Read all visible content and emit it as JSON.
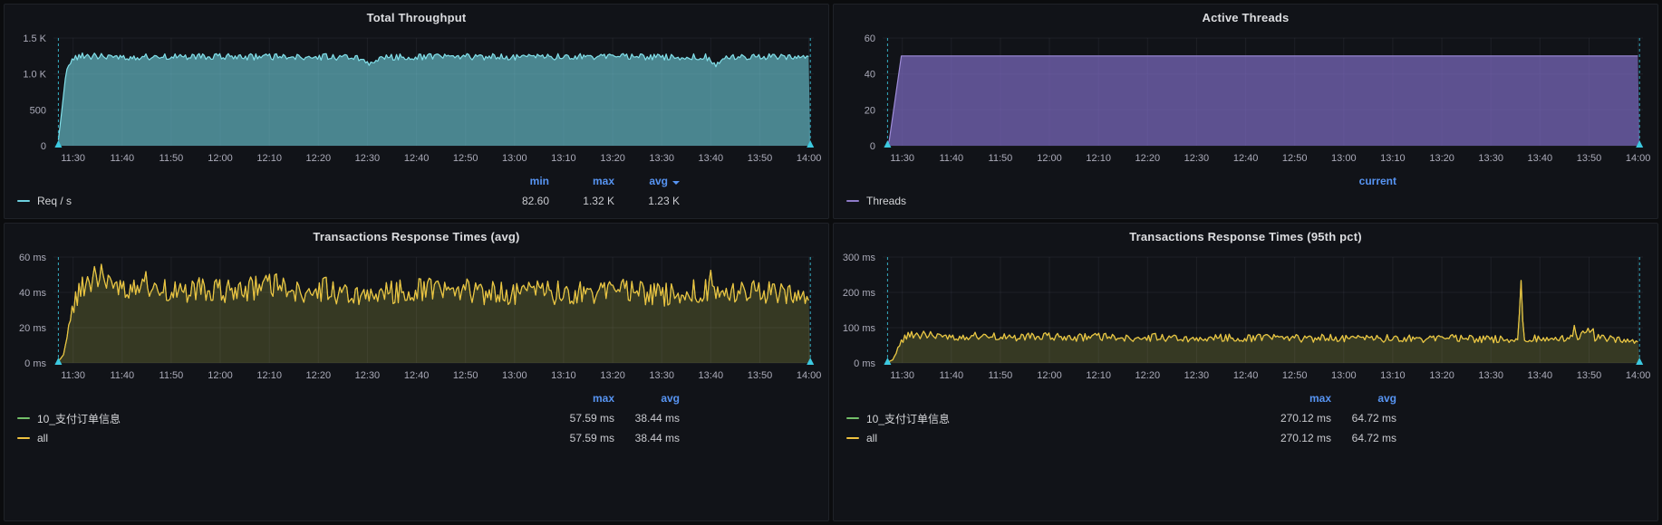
{
  "colors": {
    "page_bg": "#0B0C0E",
    "panel_bg": "#111318",
    "accent_blue": "#5794F2",
    "annotation_cyan": "#3CC9E0",
    "throughput_cyan": "#6ED0E0",
    "threads_purple": "#8F7BC9",
    "series_green": "#73BF69",
    "series_yellow": "#EFC23F"
  },
  "time_axis": {
    "min": 686,
    "max": 841,
    "ticks": [
      [
        690,
        "11:30"
      ],
      [
        700,
        "11:40"
      ],
      [
        710,
        "11:50"
      ],
      [
        720,
        "12:00"
      ],
      [
        730,
        "12:10"
      ],
      [
        740,
        "12:20"
      ],
      [
        750,
        "12:30"
      ],
      [
        760,
        "12:40"
      ],
      [
        770,
        "12:50"
      ],
      [
        780,
        "13:00"
      ],
      [
        790,
        "13:10"
      ],
      [
        800,
        "13:20"
      ],
      [
        810,
        "13:30"
      ],
      [
        820,
        "13:40"
      ],
      [
        830,
        "13:50"
      ],
      [
        840,
        "14:00"
      ]
    ]
  },
  "chart_data": [
    {
      "type": "area",
      "title": "Total Throughput",
      "ylim": [
        0,
        1500
      ],
      "y_ticks": [
        [
          0,
          "0"
        ],
        [
          500,
          "500"
        ],
        [
          1000,
          "1.0 K"
        ],
        [
          1500,
          "1.5 K"
        ]
      ],
      "annotations": [
        687,
        840.3
      ],
      "series": [
        {
          "name": "Req / s",
          "color": "#82E0EA",
          "fill": "rgba(109,204,217,0.62)",
          "keyframes": [
            [
              687,
              82
            ],
            [
              687.6,
              430
            ],
            [
              688.6,
              1060
            ],
            [
              690,
              1215
            ],
            [
              692,
              1250
            ],
            [
              700,
              1238
            ],
            [
              715,
              1242
            ],
            [
              730,
              1236
            ],
            [
              748,
              1238
            ],
            [
              750.5,
              1150
            ],
            [
              752.5,
              1232
            ],
            [
              765,
              1240
            ],
            [
              780,
              1236
            ],
            [
              795,
              1242
            ],
            [
              810,
              1238
            ],
            [
              819,
              1236
            ],
            [
              821,
              1125
            ],
            [
              823,
              1238
            ],
            [
              832,
              1242
            ],
            [
              840.3,
              1240
            ]
          ],
          "noise": [
            [
              687,
              3
            ],
            [
              689,
              12
            ],
            [
              691,
              45
            ],
            [
              840.3,
              45
            ]
          ]
        }
      ],
      "legend": {
        "headers": [
          "min",
          "max",
          "avg"
        ],
        "rows": [
          {
            "label": "Req / s",
            "color": "#6ED0E0",
            "values": [
              "82.60",
              "1.32 K",
              "1.23 K"
            ]
          }
        ]
      }
    },
    {
      "type": "area",
      "title": "Active Threads",
      "ylim": [
        0,
        60
      ],
      "y_ticks": [
        [
          0,
          "0"
        ],
        [
          20,
          "20"
        ],
        [
          40,
          "40"
        ],
        [
          60,
          "60"
        ]
      ],
      "annotations": [
        687,
        840.3
      ],
      "series": [
        {
          "name": "Threads",
          "color": "#9E8CD9",
          "fill": "rgba(124,106,191,0.72)",
          "keyframes": [
            [
              687,
              0
            ],
            [
              687.3,
              2
            ],
            [
              689.8,
              50
            ],
            [
              840.3,
              50
            ]
          ],
          "noise": [
            [
              687,
              0
            ],
            [
              840.3,
              0
            ]
          ]
        }
      ],
      "legend": {
        "headers": [
          "current"
        ],
        "rows": [
          {
            "label": "Threads",
            "color": "#8F7BC9",
            "values": [
              ""
            ]
          }
        ]
      }
    },
    {
      "type": "area",
      "title": "Transactions Response Times (avg)",
      "ylim": [
        0,
        60
      ],
      "y_ticks": [
        [
          0,
          "0 ms"
        ],
        [
          20,
          "20 ms"
        ],
        [
          40,
          "40 ms"
        ],
        [
          60,
          "60 ms"
        ]
      ],
      "annotations": [
        687,
        840.3
      ],
      "series": [
        {
          "name": "10_支付订单信息",
          "color": "#73BF69",
          "fill": "rgba(115,191,105,0.10)",
          "keyframes": [
            [
              687,
              2
            ],
            [
              688,
              5
            ],
            [
              689.5,
              27
            ],
            [
              691,
              39
            ],
            [
              693.5,
              47
            ],
            [
              696,
              50
            ],
            [
              698,
              44
            ],
            [
              701,
              43
            ],
            [
              704,
              47
            ],
            [
              707,
              42
            ],
            [
              711,
              40
            ],
            [
              716,
              42
            ],
            [
              721,
              40
            ],
            [
              726,
              42
            ],
            [
              731,
              44
            ],
            [
              736,
              40
            ],
            [
              741,
              42
            ],
            [
              746,
              39
            ],
            [
              751,
              41
            ],
            [
              756,
              40
            ],
            [
              761,
              42
            ],
            [
              766,
              40
            ],
            [
              771,
              41
            ],
            [
              776,
              39
            ],
            [
              781,
              40
            ],
            [
              786,
              41
            ],
            [
              791,
              39
            ],
            [
              796,
              40
            ],
            [
              801,
              41
            ],
            [
              806,
              40
            ],
            [
              811,
              39
            ],
            [
              815,
              41
            ],
            [
              818,
              40
            ],
            [
              819.7,
              41
            ],
            [
              820.1,
              57
            ],
            [
              820.5,
              41
            ],
            [
              824,
              40
            ],
            [
              828,
              42
            ],
            [
              832,
              40
            ],
            [
              836,
              40
            ],
            [
              839,
              38
            ],
            [
              840.3,
              34
            ]
          ],
          "noise": [
            [
              687,
              1
            ],
            [
              689,
              2
            ],
            [
              691,
              7
            ],
            [
              840.3,
              7
            ]
          ]
        },
        {
          "name": "all",
          "color": "#EFC23F",
          "fill": "rgba(240,200,60,0.13)",
          "keyframes": [
            [
              687,
              2
            ],
            [
              688,
              5
            ],
            [
              689.5,
              27
            ],
            [
              691,
              39
            ],
            [
              693.5,
              47
            ],
            [
              696,
              50
            ],
            [
              698,
              44
            ],
            [
              701,
              43
            ],
            [
              704,
              47
            ],
            [
              707,
              42
            ],
            [
              711,
              40
            ],
            [
              716,
              42
            ],
            [
              721,
              40
            ],
            [
              726,
              42
            ],
            [
              731,
              44
            ],
            [
              736,
              40
            ],
            [
              741,
              42
            ],
            [
              746,
              39
            ],
            [
              751,
              41
            ],
            [
              756,
              40
            ],
            [
              761,
              42
            ],
            [
              766,
              40
            ],
            [
              771,
              41
            ],
            [
              776,
              39
            ],
            [
              781,
              40
            ],
            [
              786,
              41
            ],
            [
              791,
              39
            ],
            [
              796,
              40
            ],
            [
              801,
              41
            ],
            [
              806,
              40
            ],
            [
              811,
              39
            ],
            [
              815,
              41
            ],
            [
              818,
              40
            ],
            [
              819.7,
              41
            ],
            [
              820.1,
              57
            ],
            [
              820.5,
              41
            ],
            [
              824,
              40
            ],
            [
              828,
              42
            ],
            [
              832,
              40
            ],
            [
              836,
              40
            ],
            [
              839,
              38
            ],
            [
              840.3,
              34
            ]
          ],
          "noise": [
            [
              687,
              1
            ],
            [
              689,
              2
            ],
            [
              691,
              7
            ],
            [
              840.3,
              7
            ]
          ]
        }
      ],
      "legend": {
        "headers": [
          "max",
          "avg"
        ],
        "rows": [
          {
            "label": "10_支付订单信息",
            "color": "#73BF69",
            "values": [
              "57.59 ms",
              "38.44 ms"
            ]
          },
          {
            "label": "all",
            "color": "#EFC23F",
            "values": [
              "57.59 ms",
              "38.44 ms"
            ]
          }
        ]
      }
    },
    {
      "type": "area",
      "title": "Transactions Response Times (95th pct)",
      "ylim": [
        0,
        300
      ],
      "y_ticks": [
        [
          0,
          "0 ms"
        ],
        [
          100,
          "100 ms"
        ],
        [
          200,
          "200 ms"
        ],
        [
          300,
          "300 ms"
        ]
      ],
      "annotations": [
        687,
        840.3
      ],
      "series": [
        {
          "name": "10_支付订单信息",
          "color": "#73BF69",
          "fill": "rgba(115,191,105,0.10)",
          "keyframes": [
            [
              687,
              5
            ],
            [
              688,
              10
            ],
            [
              689.5,
              55
            ],
            [
              691,
              78
            ],
            [
              695,
              80
            ],
            [
              700,
              74
            ],
            [
              706,
              78
            ],
            [
              712,
              72
            ],
            [
              718,
              76
            ],
            [
              724,
              71
            ],
            [
              730,
              74
            ],
            [
              736,
              70
            ],
            [
              742,
              73
            ],
            [
              748,
              70
            ],
            [
              754,
              72
            ],
            [
              760,
              70
            ],
            [
              766,
              72
            ],
            [
              772,
              69
            ],
            [
              778,
              71
            ],
            [
              784,
              69
            ],
            [
              790,
              70
            ],
            [
              796,
              68
            ],
            [
              802,
              70
            ],
            [
              808,
              68
            ],
            [
              814,
              68
            ],
            [
              815.6,
              70
            ],
            [
              816.1,
              262
            ],
            [
              816.6,
              70
            ],
            [
              820,
              68
            ],
            [
              824,
              70
            ],
            [
              826.8,
              72
            ],
            [
              827.1,
              126
            ],
            [
              827.5,
              72
            ],
            [
              830.8,
              100
            ],
            [
              831.2,
              72
            ],
            [
              834,
              70
            ],
            [
              837,
              66
            ],
            [
              839,
              62
            ],
            [
              840.3,
              58
            ]
          ],
          "noise": [
            [
              687,
              2
            ],
            [
              689,
              6
            ],
            [
              691,
              11
            ],
            [
              840.3,
              11
            ]
          ]
        },
        {
          "name": "all",
          "color": "#EFC23F",
          "fill": "rgba(240,200,60,0.13)",
          "keyframes": [
            [
              687,
              5
            ],
            [
              688,
              10
            ],
            [
              689.5,
              55
            ],
            [
              691,
              78
            ],
            [
              695,
              80
            ],
            [
              700,
              74
            ],
            [
              706,
              78
            ],
            [
              712,
              72
            ],
            [
              718,
              76
            ],
            [
              724,
              71
            ],
            [
              730,
              74
            ],
            [
              736,
              70
            ],
            [
              742,
              73
            ],
            [
              748,
              70
            ],
            [
              754,
              72
            ],
            [
              760,
              70
            ],
            [
              766,
              72
            ],
            [
              772,
              69
            ],
            [
              778,
              71
            ],
            [
              784,
              69
            ],
            [
              790,
              70
            ],
            [
              796,
              68
            ],
            [
              802,
              70
            ],
            [
              808,
              68
            ],
            [
              814,
              68
            ],
            [
              815.6,
              70
            ],
            [
              816.1,
              262
            ],
            [
              816.6,
              70
            ],
            [
              820,
              68
            ],
            [
              824,
              70
            ],
            [
              826.8,
              72
            ],
            [
              827.1,
              126
            ],
            [
              827.5,
              72
            ],
            [
              830.8,
              100
            ],
            [
              831.2,
              72
            ],
            [
              834,
              70
            ],
            [
              837,
              66
            ],
            [
              839,
              62
            ],
            [
              840.3,
              58
            ]
          ],
          "noise": [
            [
              687,
              2
            ],
            [
              689,
              6
            ],
            [
              691,
              11
            ],
            [
              840.3,
              11
            ]
          ]
        }
      ],
      "legend": {
        "headers": [
          "max",
          "avg"
        ],
        "rows": [
          {
            "label": "10_支付订单信息",
            "color": "#73BF69",
            "values": [
              "270.12 ms",
              "64.72 ms"
            ]
          },
          {
            "label": "all",
            "color": "#EFC23F",
            "values": [
              "270.12 ms",
              "64.72 ms"
            ]
          }
        ]
      }
    }
  ]
}
